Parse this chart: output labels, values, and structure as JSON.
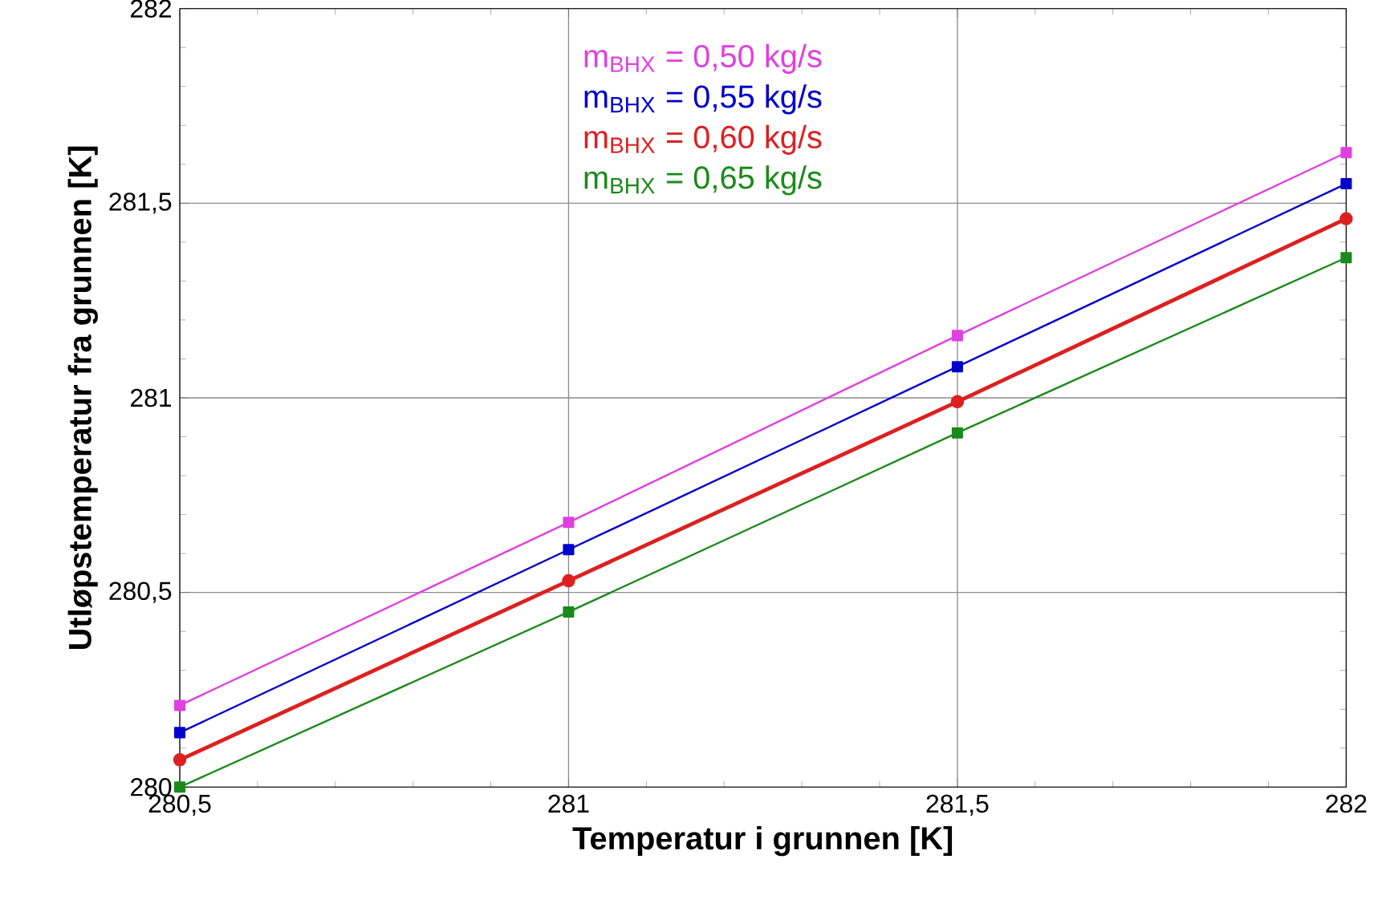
{
  "chart_data": {
    "type": "line",
    "xlabel": "Temperatur i grunnen [K]",
    "ylabel": "Utløpstemperatur fra grunnen [K]",
    "x": [
      280.5,
      281,
      281.5,
      282
    ],
    "series": [
      {
        "name": "m$_{BHX}$ = 0,50 kg/s",
        "color": "#e040e0",
        "values": [
          280.21,
          280.68,
          281.16,
          281.63
        ]
      },
      {
        "name": "m$_{BHX}$ = 0,55 kg/s",
        "color": "#0000cc",
        "values": [
          280.14,
          280.61,
          281.08,
          281.55
        ]
      },
      {
        "name": "m$_{BHX}$ = 0,60 kg/s",
        "color": "#dd2020",
        "values": [
          280.07,
          280.53,
          280.99,
          281.46
        ],
        "marker": "circle"
      },
      {
        "name": "m$_{BHX}$ = 0,65 kg/s",
        "color": "#1a8a1a",
        "values": [
          280.0,
          280.45,
          280.91,
          281.36
        ]
      }
    ],
    "xlim": [
      280.5,
      282
    ],
    "ylim": [
      280,
      282
    ],
    "xticks": [
      {
        "value": 280.5,
        "label": "280,5"
      },
      281,
      {
        "value": 281.5,
        "label": "281,5"
      },
      282
    ],
    "yticks": [
      280,
      {
        "value": 280.5,
        "label": "280,5"
      },
      281,
      {
        "value": 281.5,
        "label": "281,5"
      },
      282
    ],
    "grid": true,
    "legend": "top",
    "marker": "square",
    "line_style": "solid"
  }
}
